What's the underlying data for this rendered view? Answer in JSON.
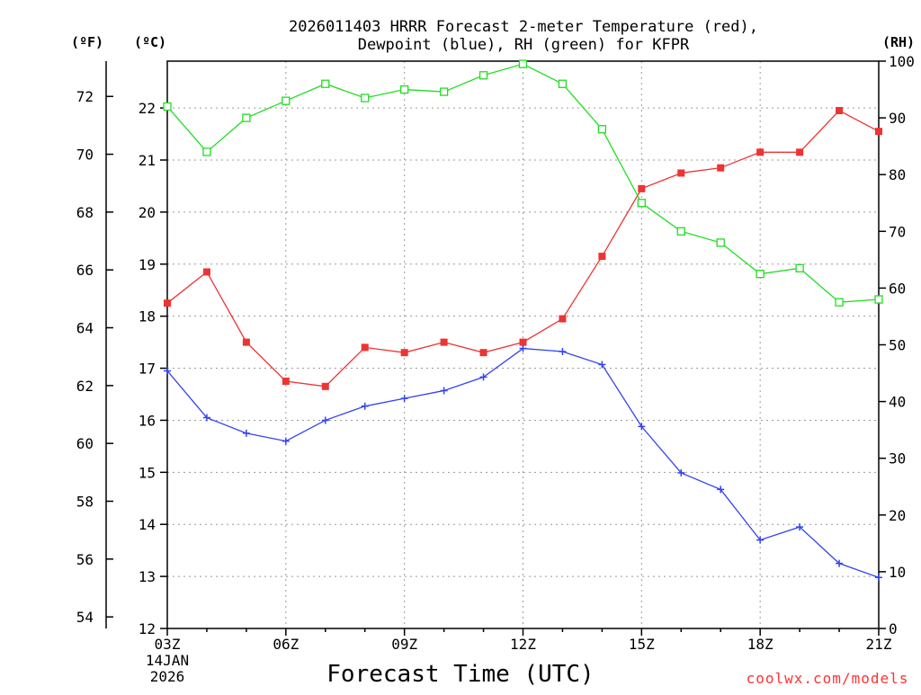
{
  "chart_data": {
    "type": "line",
    "title_line1": "2026011403 HRRR Forecast 2-meter Temperature (red),",
    "title_line2": "Dewpoint (blue), RH (green) for KFPR",
    "unit_left_outer": "(ºF)",
    "unit_left_inner": "(ºC)",
    "unit_right": "(RH)",
    "xlabel": "Forecast Time (UTC)",
    "date_line1": "14JAN",
    "date_line2": "2026",
    "credit": "coolwx.com/models",
    "x_hours": [
      3,
      4,
      5,
      6,
      7,
      8,
      9,
      10,
      11,
      12,
      13,
      14,
      15,
      16,
      17,
      18,
      19,
      20,
      21
    ],
    "x_ticks": [
      {
        "hour": 3,
        "label": "03Z"
      },
      {
        "hour": 6,
        "label": "06Z"
      },
      {
        "hour": 9,
        "label": "09Z"
      },
      {
        "hour": 12,
        "label": "12Z"
      },
      {
        "hour": 15,
        "label": "15Z"
      },
      {
        "hour": 18,
        "label": "18Z"
      },
      {
        "hour": 21,
        "label": "21Z"
      }
    ],
    "xlim": [
      3,
      21
    ],
    "celsius_axis": {
      "ylim": [
        12,
        22.9
      ],
      "ticks": [
        12,
        13,
        14,
        15,
        16,
        17,
        18,
        19,
        20,
        21,
        22
      ]
    },
    "fahrenheit_axis": {
      "ticks": [
        54,
        56,
        58,
        60,
        62,
        64,
        66,
        68,
        70,
        72
      ]
    },
    "rh_axis": {
      "ylim": [
        0,
        100
      ],
      "ticks": [
        0,
        10,
        20,
        30,
        40,
        50,
        60,
        70,
        80,
        90,
        100
      ]
    },
    "series": [
      {
        "name": "2-meter Temperature",
        "axis": "celsius",
        "color": "#ee3333",
        "marker": "filled-square",
        "values": [
          18.25,
          18.85,
          17.5,
          16.75,
          16.65,
          17.4,
          17.3,
          17.5,
          17.3,
          17.5,
          17.95,
          19.15,
          20.45,
          20.75,
          20.85,
          21.15,
          21.15,
          21.95,
          21.55
        ]
      },
      {
        "name": "Dewpoint",
        "axis": "celsius",
        "color": "#3344ee",
        "marker": "plus",
        "values": [
          16.95,
          16.05,
          15.75,
          15.6,
          16.0,
          16.27,
          16.42,
          16.57,
          16.83,
          17.38,
          17.32,
          17.07,
          15.88,
          14.99,
          14.67,
          13.7,
          13.95,
          13.25,
          12.98
        ]
      },
      {
        "name": "RH",
        "axis": "rh",
        "color": "#22dd22",
        "marker": "open-square",
        "values": [
          92,
          84,
          90,
          93,
          96,
          93.5,
          95,
          94.6,
          97.5,
          99.5,
          96,
          88,
          75,
          70,
          68,
          62.5,
          63.5,
          57.5,
          58
        ]
      }
    ]
  }
}
